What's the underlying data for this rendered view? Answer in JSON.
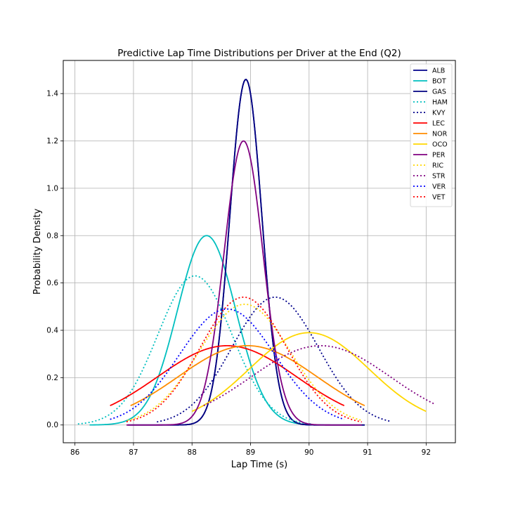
{
  "chart_data": {
    "type": "line",
    "title": "Predictive Lap Time Distributions per Driver at the End (Q2)",
    "xlabel": "Lap Time (s)",
    "ylabel": "Probability Density",
    "xlim": [
      85.8,
      92.5
    ],
    "ylim": [
      -0.075,
      1.54
    ],
    "xticks": [
      86,
      87,
      88,
      89,
      90,
      91,
      92
    ],
    "yticks": [
      0.0,
      0.2,
      0.4,
      0.6,
      0.8,
      1.0,
      1.2,
      1.4
    ],
    "grid": true,
    "legend_position": "top-right",
    "series": [
      {
        "name": "ALB",
        "color": "#00008b",
        "style": "solid",
        "mu": 88.92,
        "peak": 1.46,
        "range": [
          86.9,
          90.95
        ]
      },
      {
        "name": "BOT",
        "color": "#00bfbf",
        "style": "solid",
        "mu": 88.25,
        "peak": 0.8,
        "range": [
          86.25,
          90.25
        ]
      },
      {
        "name": "GAS",
        "color": "#000080",
        "style": "solid",
        "mu": 88.92,
        "peak": 1.46,
        "range": [
          86.9,
          90.95
        ]
      },
      {
        "name": "HAM",
        "color": "#00bfbf",
        "style": "dotted",
        "mu": 88.05,
        "peak": 0.63,
        "range": [
          86.05,
          90.05
        ]
      },
      {
        "name": "KVY",
        "color": "#00008b",
        "style": "dotted",
        "mu": 89.42,
        "peak": 0.54,
        "range": [
          87.4,
          91.4
        ]
      },
      {
        "name": "LEC",
        "color": "#ff0000",
        "style": "solid",
        "mu": 88.6,
        "peak": 0.335,
        "range": [
          86.6,
          90.6
        ]
      },
      {
        "name": "NOR",
        "color": "#ff8c00",
        "style": "solid",
        "mu": 88.95,
        "peak": 0.335,
        "range": [
          86.95,
          90.95
        ]
      },
      {
        "name": "OCO",
        "color": "#ffd700",
        "style": "solid",
        "mu": 90.0,
        "peak": 0.39,
        "range": [
          88.0,
          92.0
        ]
      },
      {
        "name": "PER",
        "color": "#800080",
        "style": "solid",
        "mu": 88.88,
        "peak": 1.2,
        "range": [
          86.88,
          90.9
        ]
      },
      {
        "name": "RIC",
        "color": "#ffd700",
        "style": "dotted",
        "mu": 88.9,
        "peak": 0.51,
        "range": [
          86.9,
          90.9
        ]
      },
      {
        "name": "STR",
        "color": "#800080",
        "style": "dotted",
        "mu": 90.2,
        "peak": 0.335,
        "range": [
          88.2,
          92.15
        ]
      },
      {
        "name": "VER",
        "color": "#0000ff",
        "style": "dotted",
        "mu": 88.6,
        "peak": 0.49,
        "range": [
          86.6,
          90.6
        ]
      },
      {
        "name": "VET",
        "color": "#ff0000",
        "style": "dotted",
        "mu": 88.88,
        "peak": 0.54,
        "range": [
          86.88,
          90.9
        ]
      }
    ]
  }
}
